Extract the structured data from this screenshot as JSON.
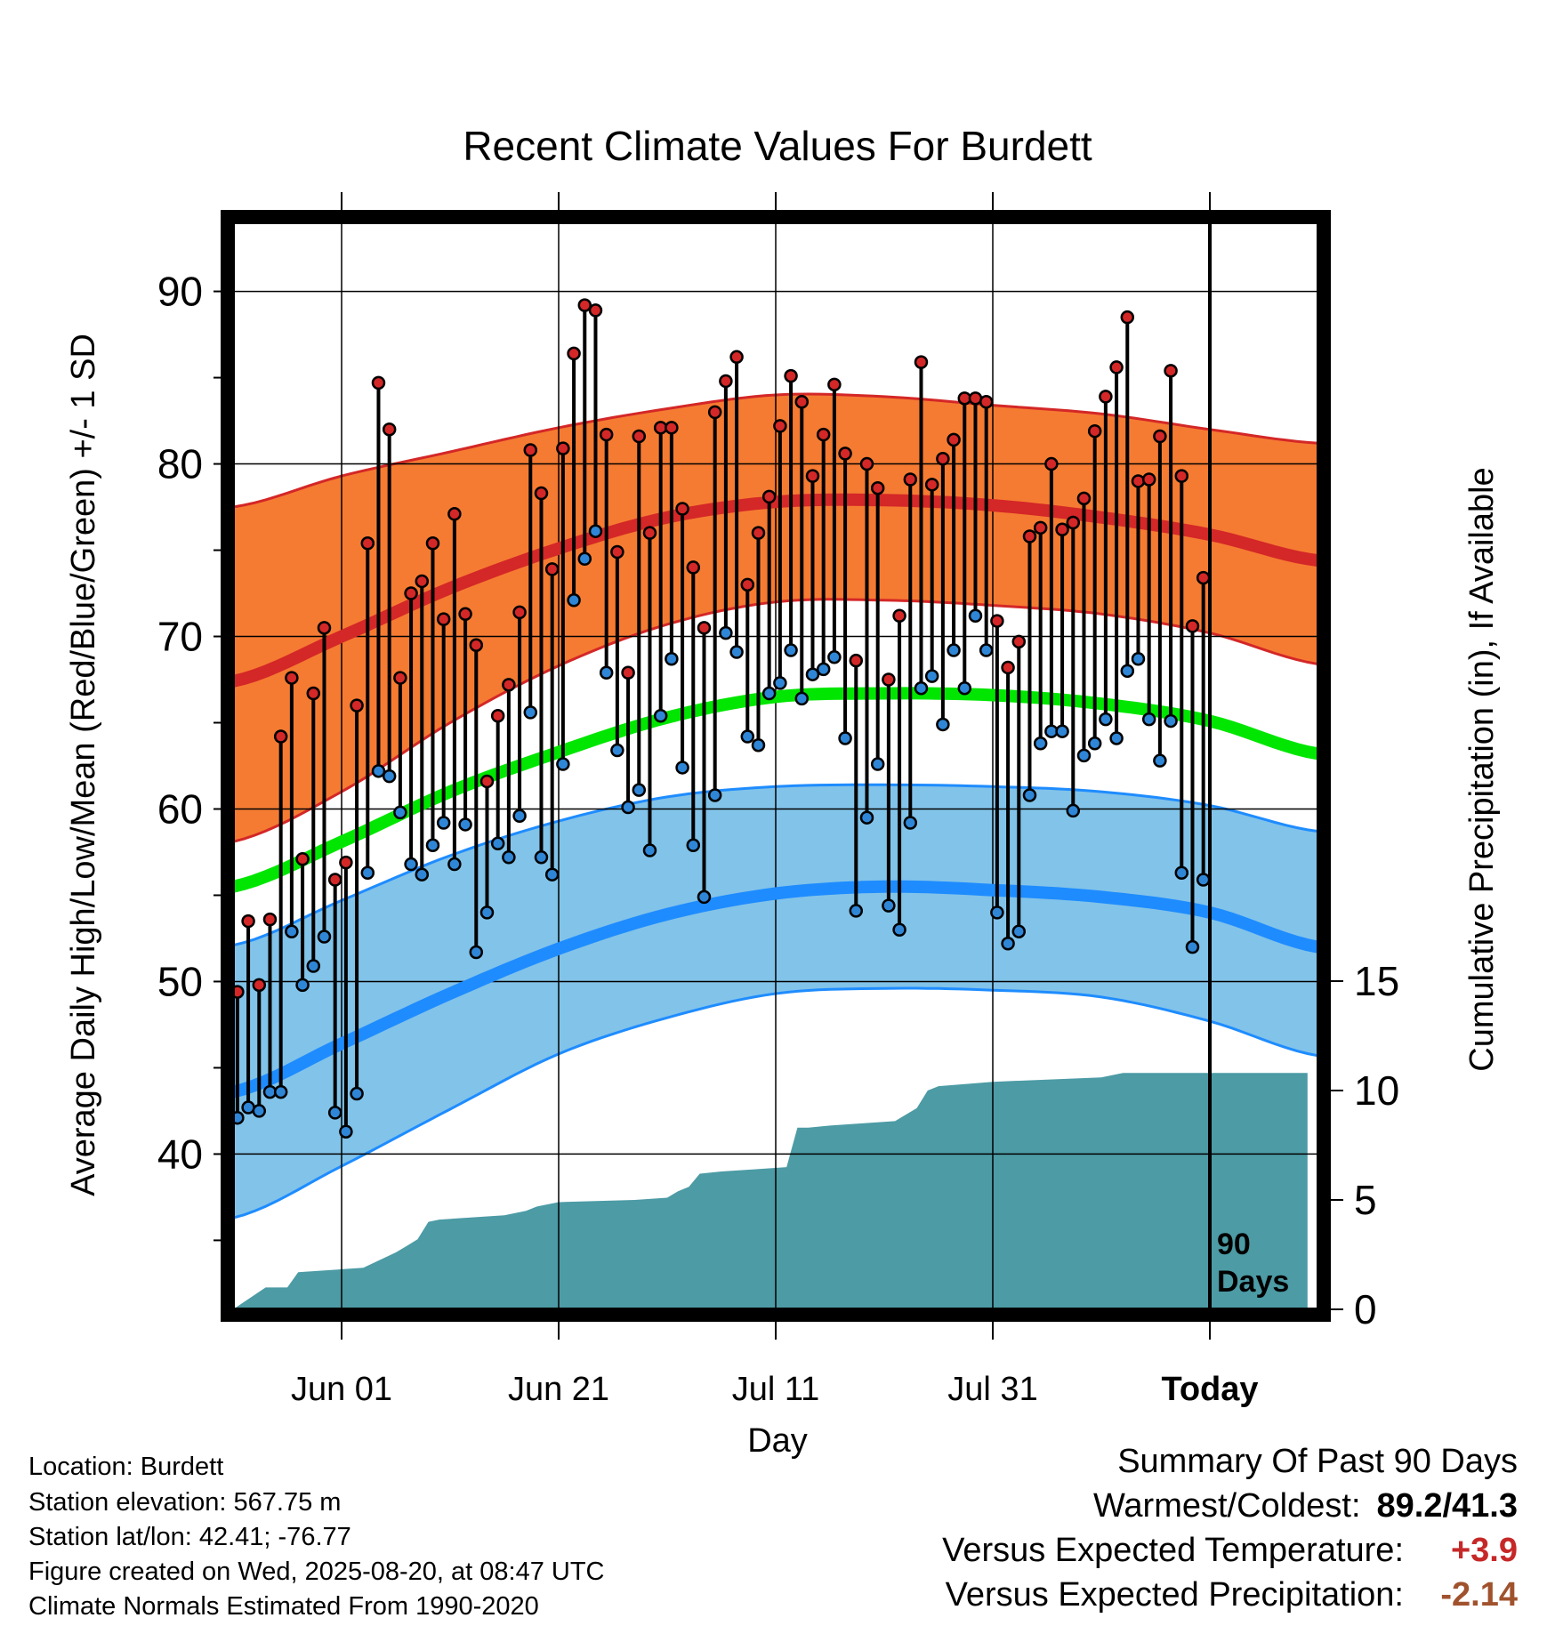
{
  "chart_data": {
    "type": "line",
    "title": "Recent Climate Values For Burdett",
    "xlabel": "Day",
    "ylabel": "Average Daily High/Low/Mean (Red/Blue/Green) +/- 1 SD",
    "y2label": "Cumulative Precipitation (in), If Available",
    "ylim": [
      31,
      94
    ],
    "y2lim": [
      0,
      20
    ],
    "yticks": [
      "40",
      "50",
      "60",
      "70",
      "80",
      "90"
    ],
    "y2ticks": [
      "0",
      "5",
      "10",
      "15"
    ],
    "xlim": [
      0,
      100
    ],
    "xtick_positions": [
      10,
      30,
      50,
      70,
      90
    ],
    "xticks": [
      "Jun 01",
      "Jun 21",
      "Jul 11",
      "Jul 31",
      "Today"
    ],
    "today_label": "90 Days",
    "normals": {
      "x": [
        0,
        10,
        20,
        30,
        40,
        50,
        60,
        70,
        80,
        90,
        100
      ],
      "high_mean": [
        67.4,
        70.0,
        72.8,
        75.1,
        76.9,
        77.8,
        77.9,
        77.6,
        76.9,
        75.9,
        74.4
      ],
      "high_upper": [
        77.5,
        79.3,
        80.7,
        82.1,
        83.2,
        84.0,
        83.9,
        83.4,
        82.9,
        82.0,
        81.2
      ],
      "high_lower": [
        58.1,
        61.0,
        65.0,
        68.3,
        70.7,
        72.0,
        72.1,
        71.8,
        71.3,
        70.2,
        68.4
      ],
      "mean_mean": [
        55.5,
        58.1,
        61.0,
        63.3,
        65.3,
        66.5,
        66.7,
        66.6,
        66.1,
        65.1,
        63.2
      ],
      "low_mean": [
        43.6,
        46.4,
        49.3,
        51.9,
        53.9,
        55.1,
        55.5,
        55.3,
        54.9,
        54.0,
        52.0
      ],
      "low_upper": [
        52.1,
        54.7,
        57.3,
        59.3,
        60.7,
        61.3,
        61.4,
        61.3,
        61.0,
        60.2,
        58.7
      ],
      "low_lower": [
        36.3,
        39.3,
        42.6,
        45.8,
        47.9,
        49.3,
        49.6,
        49.5,
        49.1,
        47.7,
        45.7
      ]
    },
    "series": [
      {
        "name": "High",
        "values": [
          49.4,
          53.5,
          49.8,
          53.6,
          64.2,
          67.6,
          57.1,
          66.7,
          70.5,
          55.9,
          56.9,
          66.0,
          75.4,
          84.7,
          82.0,
          67.6,
          72.5,
          73.2,
          75.4,
          71.0,
          77.1,
          71.3,
          69.5,
          61.6,
          65.4,
          67.2,
          71.4,
          80.8,
          78.3,
          73.9,
          80.9,
          86.4,
          89.2,
          88.9,
          81.7,
          74.9,
          67.9,
          81.6,
          76.0,
          82.1,
          82.1,
          77.4,
          74.0,
          70.5,
          83.0,
          84.8,
          86.2,
          73.0,
          76.0,
          78.1,
          82.2,
          85.1,
          83.6,
          79.3,
          81.7,
          84.6,
          80.6,
          68.6,
          80.0,
          78.6,
          67.5,
          71.2,
          79.1,
          85.9,
          78.8,
          80.3,
          81.4,
          83.8,
          83.8,
          83.6,
          70.9,
          68.2,
          69.7,
          75.8,
          76.3,
          80.0,
          76.2,
          76.6,
          78.0,
          81.9,
          83.9,
          85.6,
          88.5,
          79.0,
          79.1,
          81.6,
          85.4,
          79.3,
          70.6,
          73.4
        ]
      },
      {
        "name": "Low",
        "values": [
          42.1,
          42.7,
          42.5,
          43.6,
          43.6,
          52.9,
          49.8,
          50.9,
          52.6,
          42.4,
          41.3,
          43.5,
          56.3,
          62.2,
          61.9,
          59.8,
          56.8,
          56.2,
          57.9,
          59.2,
          56.8,
          59.1,
          51.7,
          54.0,
          58.0,
          57.2,
          59.6,
          65.6,
          57.2,
          56.2,
          62.6,
          72.1,
          74.5,
          76.1,
          67.9,
          63.4,
          60.1,
          61.1,
          57.6,
          65.4,
          68.7,
          62.4,
          57.9,
          54.9,
          60.8,
          70.2,
          69.1,
          64.2,
          63.7,
          66.7,
          67.3,
          69.2,
          66.4,
          67.8,
          68.1,
          68.8,
          64.1,
          54.1,
          59.5,
          62.6,
          54.4,
          53.0,
          59.2,
          67.0,
          67.7,
          64.9,
          69.2,
          67.0,
          71.2,
          69.2,
          54.0,
          52.2,
          52.9,
          60.8,
          63.8,
          64.5,
          64.5,
          59.9,
          63.1,
          63.8,
          65.2,
          64.1,
          68.0,
          68.7,
          65.2,
          62.8,
          65.1,
          56.3,
          52.0,
          55.9
        ]
      }
    ],
    "precipitation": {
      "x": [
        0,
        3,
        5,
        6,
        12,
        15,
        16,
        17,
        18,
        19,
        25,
        27,
        28,
        30,
        37,
        40,
        41,
        42,
        43,
        45,
        48,
        51,
        52,
        53,
        55,
        58,
        61,
        63,
        64,
        65,
        70,
        80,
        82,
        85,
        90,
        99
      ],
      "values": [
        0,
        1.0,
        1.0,
        1.7,
        1.9,
        2.6,
        2.9,
        3.2,
        4.0,
        4.1,
        4.3,
        4.5,
        4.7,
        4.9,
        5.0,
        5.1,
        5.4,
        5.6,
        6.2,
        6.3,
        6.4,
        6.5,
        8.3,
        8.3,
        8.4,
        8.5,
        8.6,
        9.2,
        10.0,
        10.2,
        10.4,
        10.6,
        10.8,
        10.8,
        10.8,
        10.8
      ]
    },
    "colors": {
      "high_band": "#f57b32",
      "high_line": "#d42727",
      "mean_line": "#00e600",
      "low_band": "#82c3e9",
      "low_line": "#1e8cff",
      "precip": "#4c9ba5",
      "high_dot": "#d42727",
      "low_dot": "#2f86d6"
    }
  },
  "metadata": {
    "lines": [
      "Location: Burdett",
      "Station elevation: 567.75 m",
      "Station lat/lon: 42.41; -76.77",
      "Figure created on Wed, 2025-08-20, at 08:47 UTC",
      "Climate Normals Estimated From 1990-2020"
    ]
  },
  "summary": {
    "heading": "Summary Of Past 90 Days",
    "warmest_coldest_label": "Warmest/Coldest:",
    "warmest_coldest_value": "89.2/41.3",
    "temp_label": "Versus Expected Temperature:",
    "temp_value": "+3.9",
    "temp_color": "#c62828",
    "precip_label": "Versus Expected Precipitation:",
    "precip_value": "-2.14",
    "precip_color": "#a0522d"
  }
}
